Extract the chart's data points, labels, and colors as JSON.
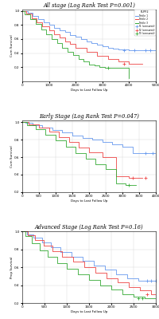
{
  "title1": "All stage (Log Rank Test P=0.001)",
  "title2": "Early Stage (Log Rank Test P=0.047)",
  "title3": "Advanced Stage (Log Rank Test P=0.16)",
  "xlabel": "Days to Last Follow Up",
  "ylabel": "Cum Survival",
  "ylabel3": "Prop Survival",
  "colors": [
    "#6699ee",
    "#ee4444",
    "#33aa33"
  ],
  "legend_title": "PLPP2",
  "legend_labels": [
    "Tertile 1",
    "Tertile 2",
    "Tertile 3",
    "T1 (censored)",
    "T2 (censored)",
    "T3 (censored)"
  ],
  "plot1": {
    "xlim": [
      0,
      5000
    ],
    "ylim": [
      0.0,
      1.02
    ],
    "xticks": [
      0,
      1000,
      2000,
      3000,
      4000,
      5000
    ],
    "yticks": [
      0.2,
      0.4,
      0.6,
      0.8,
      1.0
    ]
  },
  "plot2": {
    "xlim": [
      0,
      4000
    ],
    "ylim": [
      0.2,
      1.02
    ],
    "xticks": [
      0,
      500,
      1000,
      1500,
      2000,
      2500,
      3000,
      3500,
      4000
    ],
    "yticks": [
      0.2,
      0.4,
      0.6,
      0.8,
      1.0
    ]
  },
  "plot3": {
    "xlim": [
      0,
      3000
    ],
    "ylim": [
      0.0,
      1.0
    ],
    "xticks": [
      0,
      500,
      1000,
      1500,
      2000,
      2500,
      3000
    ],
    "yticks": [
      0.2,
      0.4,
      0.6,
      0.8,
      1.0
    ]
  }
}
